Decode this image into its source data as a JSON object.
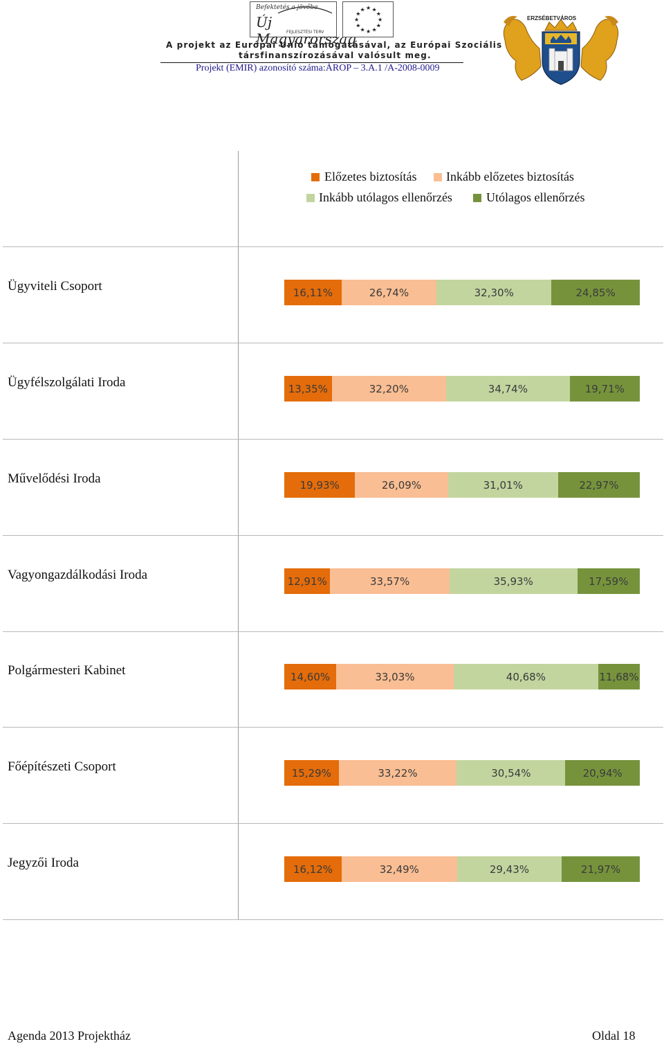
{
  "header": {
    "logo_left_top": "Befektetés a jövőbe",
    "logo_left_main": "Új Magyarország",
    "logo_left_sub": "FEJLESZTÉSI TERV",
    "line1": "A projekt az Európai Unió támogatásával, az Európai Szociális Alap",
    "line2": "társfinanszírozásával valósult meg.",
    "line3": "Projekt (EMIR) azonosító száma:ÁROP – 3.A.1 /A-2008-0009",
    "crest_label": "ERZSÉBETVÁROS"
  },
  "colors": {
    "c1": "#E46C0A",
    "c2": "#F9BE93",
    "c3": "#C3D59F",
    "c4": "#76933C"
  },
  "chart_data": {
    "type": "bar",
    "stacked": true,
    "orientation": "horizontal",
    "percent": true,
    "legend": [
      "Előzetes biztosítás",
      "Inkább előzetes biztosítás",
      "Inkább utólagos ellenőrzés",
      "Utólagos ellenőrzés"
    ],
    "categories": [
      "Ügyviteli Csoport",
      "Ügyfélszolgálati Iroda",
      "Művelődési Iroda",
      "Vagyongazdálkodási Iroda",
      "Polgármesteri Kabinet",
      "Főépítészeti Csoport",
      "Jegyzői Iroda"
    ],
    "series": [
      {
        "name": "Előzetes biztosítás",
        "values": [
          16.11,
          13.35,
          19.93,
          12.91,
          14.6,
          15.29,
          16.12
        ]
      },
      {
        "name": "Inkább előzetes biztosítás",
        "values": [
          26.74,
          32.2,
          26.09,
          33.57,
          33.03,
          33.22,
          32.49
        ]
      },
      {
        "name": "Inkább utólagos ellenőrzés",
        "values": [
          32.3,
          34.74,
          31.01,
          35.93,
          40.68,
          30.54,
          29.43
        ]
      },
      {
        "name": "Utólagos ellenőrzés",
        "values": [
          24.85,
          19.71,
          22.97,
          17.59,
          11.68,
          20.94,
          21.97
        ]
      }
    ],
    "labels": [
      [
        "16,11%",
        "26,74%",
        "32,30%",
        "24,85%"
      ],
      [
        "13,35%",
        "32,20%",
        "34,74%",
        "19,71%"
      ],
      [
        "19,93%",
        "26,09%",
        "31,01%",
        "22,97%"
      ],
      [
        "12,91%",
        "33,57%",
        "35,93%",
        "17,59%"
      ],
      [
        "14,60%",
        "33,03%",
        "40,68%",
        "11,68%"
      ],
      [
        "15,29%",
        "33,22%",
        "30,54%",
        "20,94%"
      ],
      [
        "16,12%",
        "32,49%",
        "29,43%",
        "21,97%"
      ]
    ]
  },
  "footer": {
    "left": "Agenda 2013 Projektház",
    "right": "Oldal 18"
  }
}
